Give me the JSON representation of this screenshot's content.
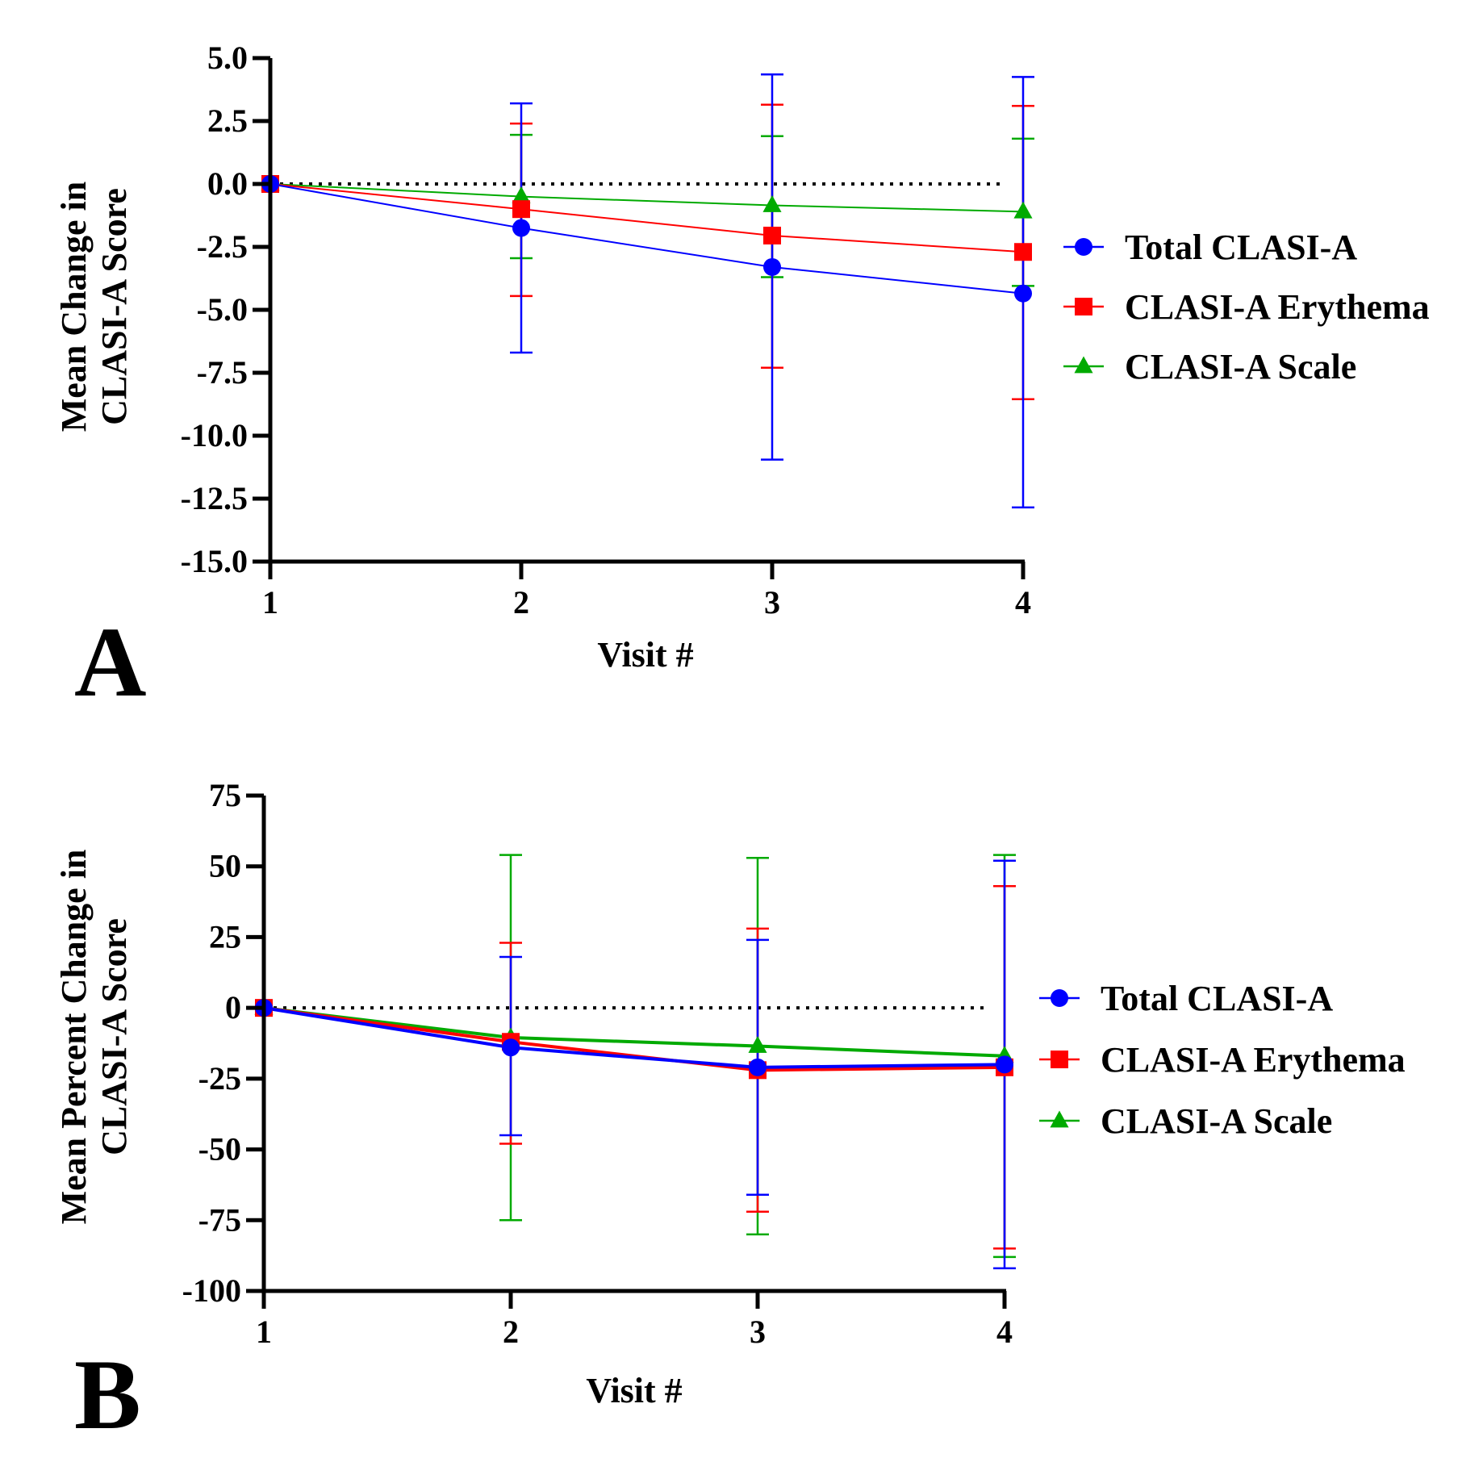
{
  "colors": {
    "total": "#0000ff",
    "erythema": "#ff0000",
    "scale": "#00aa00",
    "axis": "#000000"
  },
  "chart_data": [
    {
      "panel": "A",
      "type": "line",
      "xlabel": "Visit #",
      "ylabel": [
        "Mean Change in",
        "CLASI-A Score"
      ],
      "categories": [
        "1",
        "2",
        "3",
        "4"
      ],
      "x": [
        1,
        2,
        3,
        4
      ],
      "ylim": [
        -15,
        5
      ],
      "yticks": [
        5,
        2.5,
        0,
        -2.5,
        -5,
        -7.5,
        -10,
        -12.5,
        -15
      ],
      "ytick_labels": [
        "5.0",
        "2.5",
        "0.0",
        "-2.5",
        "-5.0",
        "-7.5",
        "-10.0",
        "-12.5",
        "-15.0"
      ],
      "reference_line": 0,
      "legend_position": "right",
      "series": [
        {
          "name": "Total CLASI-A",
          "marker": "circle",
          "color": "#0000ff",
          "values": [
            0,
            -1.75,
            -3.3,
            -4.35
          ],
          "err_upper": [
            0,
            3.2,
            4.35,
            4.25
          ],
          "err_lower": [
            0,
            -6.7,
            -10.95,
            -12.85
          ]
        },
        {
          "name": "CLASI-A Erythema",
          "marker": "square",
          "color": "#ff0000",
          "values": [
            0,
            -1.0,
            -2.05,
            -2.7
          ],
          "err_upper": [
            0,
            2.4,
            3.15,
            3.1
          ],
          "err_lower": [
            0,
            -4.45,
            -7.3,
            -8.55
          ]
        },
        {
          "name": "CLASI-A Scale",
          "marker": "triangle",
          "color": "#00aa00",
          "values": [
            0,
            -0.5,
            -0.85,
            -1.1
          ],
          "err_upper": [
            0,
            1.95,
            1.9,
            1.8
          ],
          "err_lower": [
            0,
            -2.95,
            -3.7,
            -4.05
          ]
        }
      ]
    },
    {
      "panel": "B",
      "type": "line",
      "xlabel": "Visit #",
      "ylabel": [
        "Mean Percent Change in",
        "CLASI-A Score"
      ],
      "categories": [
        "1",
        "2",
        "3",
        "4"
      ],
      "x": [
        1,
        2,
        3,
        4
      ],
      "ylim": [
        -100,
        75
      ],
      "yticks": [
        75,
        50,
        25,
        0,
        -25,
        -50,
        -75,
        -100
      ],
      "ytick_labels": [
        "75",
        "50",
        "25",
        "0",
        "-25",
        "-50",
        "-75",
        "-100"
      ],
      "reference_line": 0,
      "legend_position": "right",
      "series": [
        {
          "name": "Total CLASI-A",
          "marker": "circle",
          "color": "#0000ff",
          "values": [
            0,
            -14,
            -21,
            -20
          ],
          "err_upper": [
            0,
            18,
            24,
            52
          ],
          "err_lower": [
            0,
            -45,
            -66,
            -92
          ]
        },
        {
          "name": "CLASI-A Erythema",
          "marker": "square",
          "color": "#ff0000",
          "values": [
            0,
            -12,
            -22,
            -21
          ],
          "err_upper": [
            0,
            23,
            28,
            43
          ],
          "err_lower": [
            0,
            -48,
            -72,
            -85
          ]
        },
        {
          "name": "CLASI-A Scale",
          "marker": "triangle",
          "color": "#00aa00",
          "values": [
            0,
            -10.5,
            -13.5,
            -17
          ],
          "err_upper": [
            0,
            54,
            53,
            54
          ],
          "err_lower": [
            0,
            -75,
            -80,
            -88
          ]
        }
      ]
    }
  ]
}
